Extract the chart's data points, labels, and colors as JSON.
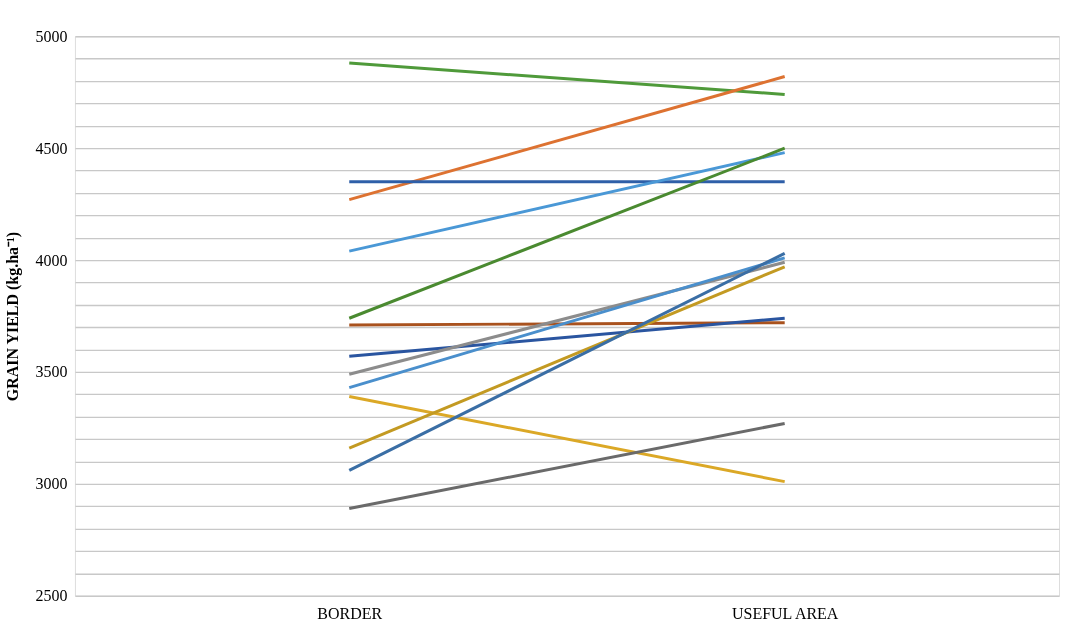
{
  "chart_data": {
    "type": "line",
    "ylabel": "GRAIN YIELD (kg.ha⁻¹)",
    "categories": [
      "BORDER",
      "USEFUL AREA"
    ],
    "ylim": [
      2500,
      5000
    ],
    "yticks": [
      2500,
      {
        "value": 2600,
        "label": null
      },
      {
        "value": 2700,
        "label": null
      },
      {
        "value": 2800,
        "label": null
      },
      {
        "value": 2900,
        "label": null
      },
      3000,
      {
        "value": 3100,
        "label": null
      },
      {
        "value": 3200,
        "label": null
      },
      {
        "value": 3300,
        "label": null
      },
      {
        "value": 3400,
        "label": null
      },
      3500,
      {
        "value": 3600,
        "label": null
      },
      {
        "value": 3700,
        "label": null
      },
      {
        "value": 3800,
        "label": null
      },
      {
        "value": 3900,
        "label": null
      },
      4000,
      {
        "value": 4100,
        "label": null
      },
      {
        "value": 4200,
        "label": null
      },
      {
        "value": 4300,
        "label": null
      },
      {
        "value": 4400,
        "label": null
      },
      4500,
      {
        "value": 4600,
        "label": null
      },
      {
        "value": 4700,
        "label": null
      },
      {
        "value": 4800,
        "label": null
      },
      {
        "value": 4900,
        "label": null
      },
      5000
    ],
    "grid": "y",
    "legend": false,
    "marker": "none",
    "line_style": "solid",
    "series": [
      {
        "color": "#4f9a3a",
        "values": [
          4880,
          4740
        ]
      },
      {
        "color": "#dd7231",
        "values": [
          4270,
          4820
        ]
      },
      {
        "color": "#2e5fa8",
        "values": [
          4350,
          4350
        ]
      },
      {
        "color": "#4a98d6",
        "values": [
          4040,
          4480
        ]
      },
      {
        "color": "#4a8a30",
        "values": [
          3740,
          4500
        ]
      },
      {
        "color": "#a9521e",
        "values": [
          3710,
          3720
        ]
      },
      {
        "color": "#2a55a0",
        "values": [
          3570,
          3740
        ]
      },
      {
        "color": "#8c8c8c",
        "values": [
          3490,
          3990
        ]
      },
      {
        "color": "#4a8fcc",
        "values": [
          3430,
          4010
        ]
      },
      {
        "color": "#dba826",
        "values": [
          3390,
          3010
        ]
      },
      {
        "color": "#c39a22",
        "values": [
          3160,
          3970
        ]
      },
      {
        "color": "#3a6ea5",
        "values": [
          3060,
          4030
        ]
      },
      {
        "color": "#6a6a6a",
        "values": [
          2890,
          3270
        ]
      }
    ]
  }
}
